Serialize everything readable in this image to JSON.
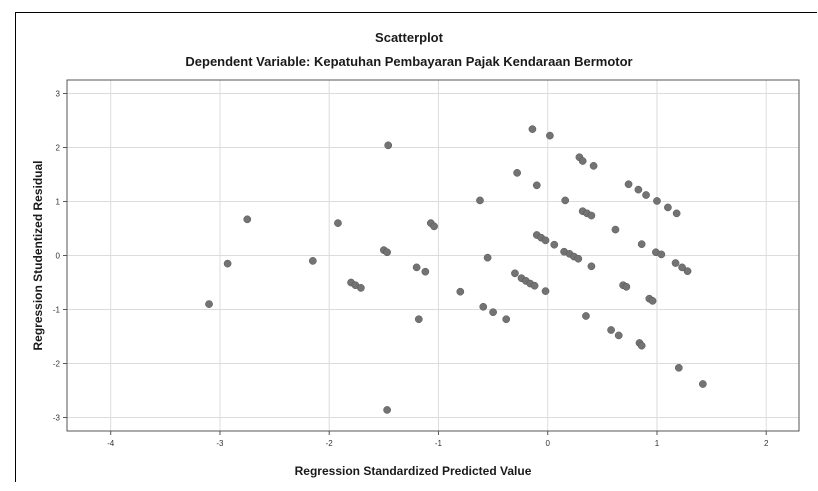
{
  "chart_data": {
    "type": "scatter",
    "title": "Scatterplot",
    "subtitle": "Dependent Variable: Kepatuhan Pembayaran Pajak Kendaraan Bermotor",
    "xlabel": "Regression Standardized Predicted Value",
    "ylabel": "Regression Studentized Residual",
    "xlim": [
      -4.4,
      2.3
    ],
    "ylim": [
      -3.25,
      3.25
    ],
    "xticks": [
      -4,
      -3,
      -2,
      -1,
      0,
      1,
      2
    ],
    "yticks": [
      -3,
      -2,
      -1,
      0,
      1,
      2,
      3
    ],
    "grid": true,
    "marker_color": "#737373",
    "points": [
      [
        -3.1,
        -0.9
      ],
      [
        -2.93,
        -0.15
      ],
      [
        -2.75,
        0.67
      ],
      [
        -2.15,
        -0.1
      ],
      [
        -1.92,
        0.6
      ],
      [
        -1.8,
        -0.5
      ],
      [
        -1.76,
        -0.55
      ],
      [
        -1.71,
        -0.6
      ],
      [
        -1.5,
        0.1
      ],
      [
        -1.47,
        0.06
      ],
      [
        -1.46,
        2.04
      ],
      [
        -1.47,
        -2.86
      ],
      [
        -1.2,
        -0.22
      ],
      [
        -1.18,
        -1.18
      ],
      [
        -1.12,
        -0.3
      ],
      [
        -1.07,
        0.6
      ],
      [
        -1.04,
        0.54
      ],
      [
        -0.8,
        -0.67
      ],
      [
        -0.62,
        1.02
      ],
      [
        -0.59,
        -0.95
      ],
      [
        -0.55,
        -0.04
      ],
      [
        -0.5,
        -1.05
      ],
      [
        -0.38,
        -1.18
      ],
      [
        -0.3,
        -0.33
      ],
      [
        -0.28,
        1.53
      ],
      [
        -0.24,
        -0.42
      ],
      [
        -0.2,
        -0.47
      ],
      [
        -0.16,
        -0.52
      ],
      [
        -0.12,
        -0.56
      ],
      [
        -0.14,
        2.34
      ],
      [
        -0.1,
        0.38
      ],
      [
        -0.1,
        1.3
      ],
      [
        -0.06,
        0.33
      ],
      [
        -0.02,
        0.28
      ],
      [
        -0.02,
        -0.66
      ],
      [
        0.02,
        2.22
      ],
      [
        0.06,
        0.2
      ],
      [
        0.15,
        0.07
      ],
      [
        0.16,
        1.02
      ],
      [
        0.2,
        0.03
      ],
      [
        0.24,
        -0.02
      ],
      [
        0.28,
        -0.06
      ],
      [
        0.29,
        1.82
      ],
      [
        0.32,
        1.75
      ],
      [
        0.32,
        0.82
      ],
      [
        0.35,
        -1.12
      ],
      [
        0.36,
        0.78
      ],
      [
        0.4,
        0.74
      ],
      [
        0.4,
        -0.2
      ],
      [
        0.42,
        1.66
      ],
      [
        0.58,
        -1.38
      ],
      [
        0.62,
        0.48
      ],
      [
        0.65,
        -1.48
      ],
      [
        0.69,
        -0.55
      ],
      [
        0.72,
        -0.58
      ],
      [
        0.74,
        1.32
      ],
      [
        0.83,
        1.22
      ],
      [
        0.84,
        -1.62
      ],
      [
        0.86,
        0.21
      ],
      [
        0.86,
        -1.67
      ],
      [
        0.9,
        1.12
      ],
      [
        0.93,
        -0.8
      ],
      [
        0.96,
        -0.84
      ],
      [
        1.0,
        1.01
      ],
      [
        0.99,
        0.06
      ],
      [
        1.04,
        0.02
      ],
      [
        1.1,
        0.89
      ],
      [
        1.17,
        -0.14
      ],
      [
        1.18,
        0.78
      ],
      [
        1.2,
        -2.08
      ],
      [
        1.23,
        -0.22
      ],
      [
        1.28,
        -0.29
      ],
      [
        1.42,
        -2.38
      ]
    ]
  }
}
